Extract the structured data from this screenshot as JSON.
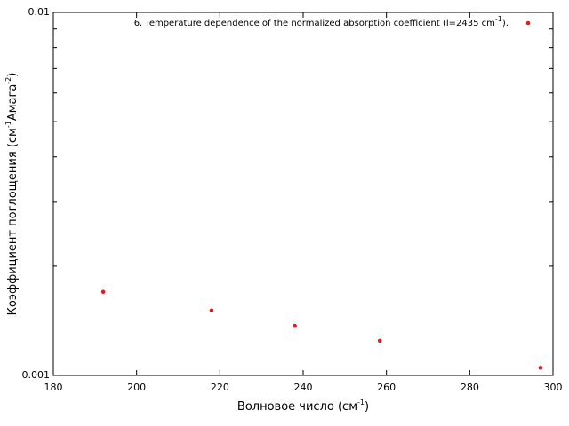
{
  "chart_data": {
    "type": "scatter",
    "ylog": true,
    "xlabel": [
      "Волновое число (см",
      "-1",
      ")"
    ],
    "ylabel": [
      "Коэффициент поглощения (см",
      "-1",
      "Амага",
      "-2",
      ")"
    ],
    "series": [
      {
        "name": [
          "6. Temperature dependence of the normalized absorption coefficient (l=2435 cm",
          "-1",
          ")."
        ],
        "color": "#e41a1c",
        "x": [
          192,
          218,
          238,
          258.4,
          297
        ],
        "values": [
          0.0017,
          0.00151,
          0.00137,
          0.001246,
          0.00105
        ]
      }
    ],
    "xlim": [
      180,
      300
    ],
    "xticks": [
      180,
      200,
      220,
      240,
      260,
      280,
      300
    ],
    "ylim": [
      0.001,
      0.01
    ],
    "yticks": [
      0.001,
      0.01
    ],
    "yminorticks": [
      0.002,
      0.003,
      0.004,
      0.005,
      0.006,
      0.007,
      0.008,
      0.009
    ],
    "legend": "top-right"
  }
}
